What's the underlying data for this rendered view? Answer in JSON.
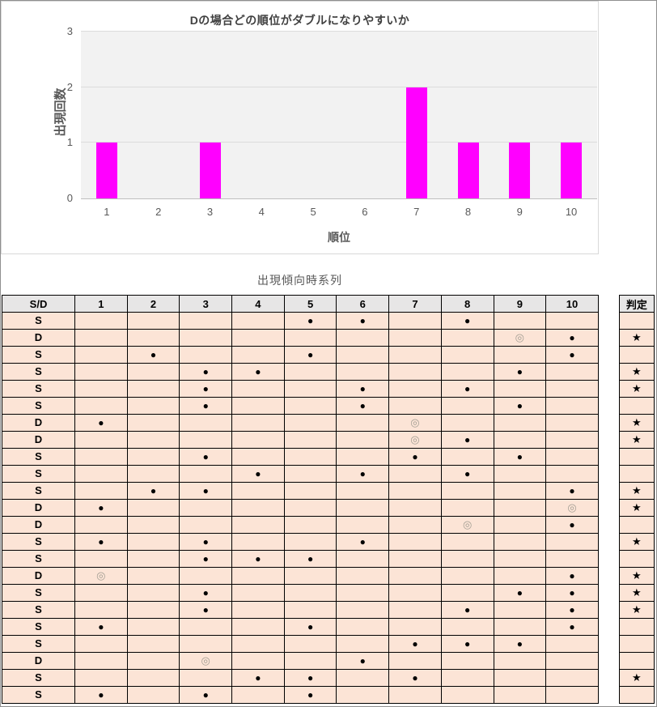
{
  "chart": {
    "title": "Dの場合どの順位がダブルになりやすいか",
    "ylabel": "出現回数",
    "xlabel": "順位",
    "yticks": [
      0,
      1,
      2,
      3
    ],
    "bar_color": "#ff00ff",
    "plot_bg": "#f2f2f2",
    "gridline_color": "#dcdcdc"
  },
  "chart_data": {
    "type": "bar",
    "title": "Dの場合どの順位がダブルになりやすいか",
    "categories": [
      "1",
      "2",
      "3",
      "4",
      "5",
      "6",
      "7",
      "8",
      "9",
      "10"
    ],
    "values": [
      1,
      0,
      1,
      0,
      0,
      0,
      2,
      1,
      1,
      1
    ],
    "xlabel": "順位",
    "ylabel": "出現回数",
    "ylim": [
      0,
      3
    ],
    "grid": true,
    "legend": false
  },
  "table": {
    "title": "出現傾向時系列",
    "header": [
      "S/D",
      "1",
      "2",
      "3",
      "4",
      "5",
      "6",
      "7",
      "8",
      "9",
      "10"
    ],
    "judgment_header": "判定",
    "symbols": {
      "filled": "●",
      "double": "◎",
      "star": "★"
    },
    "colors": {
      "header_bg": "#e7e6e6",
      "row_bg": "#fce4d6",
      "border": "#000000",
      "double_circle": "#a39e93"
    },
    "rows": [
      {
        "sd": "S",
        "cells": [
          "",
          "",
          "",
          "",
          "●",
          "●",
          "",
          "●",
          "",
          ""
        ],
        "judgment": ""
      },
      {
        "sd": "D",
        "cells": [
          "",
          "",
          "",
          "",
          "",
          "",
          "",
          "",
          "◎",
          "●"
        ],
        "judgment": "★"
      },
      {
        "sd": "S",
        "cells": [
          "",
          "●",
          "",
          "",
          "●",
          "",
          "",
          "",
          "",
          "●"
        ],
        "judgment": ""
      },
      {
        "sd": "S",
        "cells": [
          "",
          "",
          "●",
          "●",
          "",
          "",
          "",
          "",
          "●",
          ""
        ],
        "judgment": "★"
      },
      {
        "sd": "S",
        "cells": [
          "",
          "",
          "●",
          "",
          "",
          "●",
          "",
          "●",
          "",
          ""
        ],
        "judgment": "★"
      },
      {
        "sd": "S",
        "cells": [
          "",
          "",
          "●",
          "",
          "",
          "●",
          "",
          "",
          "●",
          ""
        ],
        "judgment": ""
      },
      {
        "sd": "D",
        "cells": [
          "●",
          "",
          "",
          "",
          "",
          "",
          "◎",
          "",
          "",
          ""
        ],
        "judgment": "★"
      },
      {
        "sd": "D",
        "cells": [
          "",
          "",
          "",
          "",
          "",
          "",
          "◎",
          "●",
          "",
          ""
        ],
        "judgment": "★"
      },
      {
        "sd": "S",
        "cells": [
          "",
          "",
          "●",
          "",
          "",
          "",
          "●",
          "",
          "●",
          ""
        ],
        "judgment": ""
      },
      {
        "sd": "S",
        "cells": [
          "",
          "",
          "",
          "●",
          "",
          "●",
          "",
          "●",
          "",
          ""
        ],
        "judgment": ""
      },
      {
        "sd": "S",
        "cells": [
          "",
          "●",
          "●",
          "",
          "",
          "",
          "",
          "",
          "",
          "●"
        ],
        "judgment": "★"
      },
      {
        "sd": "D",
        "cells": [
          "●",
          "",
          "",
          "",
          "",
          "",
          "",
          "",
          "",
          "◎"
        ],
        "judgment": "★"
      },
      {
        "sd": "D",
        "cells": [
          "",
          "",
          "",
          "",
          "",
          "",
          "",
          "◎",
          "",
          "●"
        ],
        "judgment": ""
      },
      {
        "sd": "S",
        "cells": [
          "●",
          "",
          "●",
          "",
          "",
          "●",
          "",
          "",
          "",
          ""
        ],
        "judgment": "★"
      },
      {
        "sd": "S",
        "cells": [
          "",
          "",
          "●",
          "●",
          "●",
          "",
          "",
          "",
          "",
          ""
        ],
        "judgment": ""
      },
      {
        "sd": "D",
        "cells": [
          "◎",
          "",
          "",
          "",
          "",
          "",
          "",
          "",
          "",
          "●"
        ],
        "judgment": "★"
      },
      {
        "sd": "S",
        "cells": [
          "",
          "",
          "●",
          "",
          "",
          "",
          "",
          "",
          "●",
          "●"
        ],
        "judgment": "★"
      },
      {
        "sd": "S",
        "cells": [
          "",
          "",
          "●",
          "",
          "",
          "",
          "",
          "●",
          "",
          "●"
        ],
        "judgment": "★"
      },
      {
        "sd": "S",
        "cells": [
          "●",
          "",
          "",
          "",
          "●",
          "",
          "",
          "",
          "",
          "●"
        ],
        "judgment": ""
      },
      {
        "sd": "S",
        "cells": [
          "",
          "",
          "",
          "",
          "",
          "",
          "●",
          "●",
          "●",
          ""
        ],
        "judgment": ""
      },
      {
        "sd": "D",
        "cells": [
          "",
          "",
          "◎",
          "",
          "",
          "●",
          "",
          "",
          "",
          ""
        ],
        "judgment": ""
      },
      {
        "sd": "S",
        "cells": [
          "",
          "",
          "",
          "●",
          "●",
          "",
          "●",
          "",
          "",
          ""
        ],
        "judgment": "★"
      },
      {
        "sd": "S",
        "cells": [
          "●",
          "",
          "●",
          "",
          "●",
          "",
          "",
          "",
          "",
          ""
        ],
        "judgment": ""
      }
    ]
  }
}
